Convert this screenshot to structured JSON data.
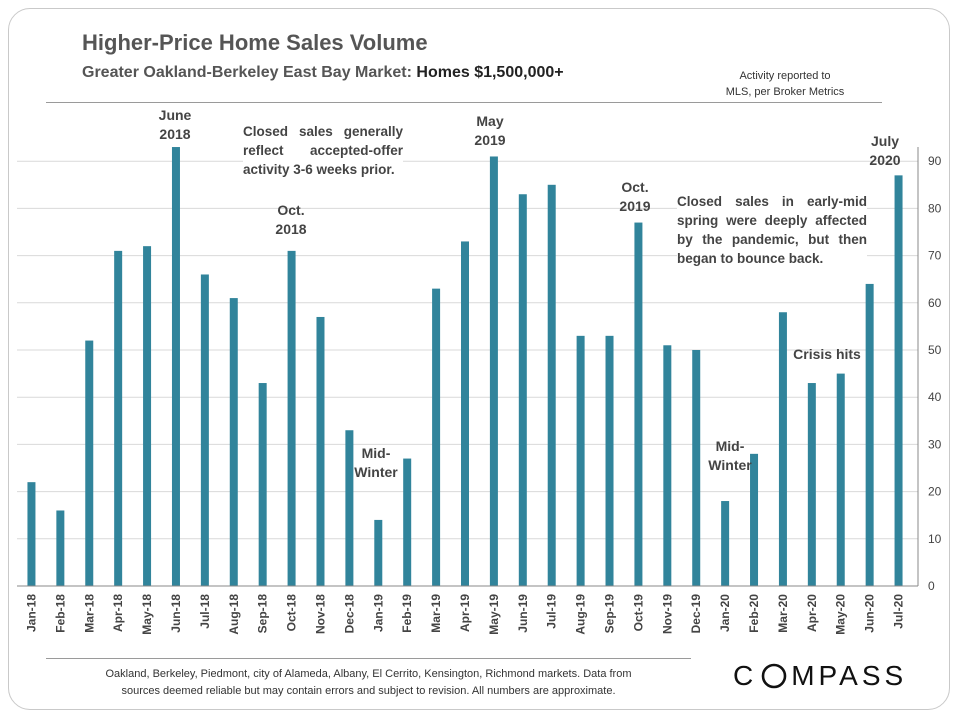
{
  "header": {
    "title": "Higher-Price Home Sales Volume",
    "subtitle_main": "Greater Oakland-Berkeley  East Bay Market: ",
    "subtitle_strong": "Homes $1,500,000+",
    "source_line1": "Activity reported to",
    "source_line2": "MLS, per Broker Metrics"
  },
  "annotations": {
    "june2018_l1": "June",
    "june2018_l2": "2018",
    "oct2018_l1": "Oct.",
    "oct2018_l2": "2018",
    "midwinter1_l1": "Mid-",
    "midwinter1_l2": "Winter",
    "may2019_l1": "May",
    "may2019_l2": "2019",
    "oct2019_l1": "Oct.",
    "oct2019_l2": "2019",
    "midwinter2_l1": "Mid-",
    "midwinter2_l2": "Winter",
    "crisis": "Crisis hits",
    "july2020_l1": "July",
    "july2020_l2": "2020",
    "callout_closed": "Closed sales generally reflect accepted-offer activity 3-6 weeks prior.",
    "callout_pandemic": "Closed sales in early-mid spring were deeply affected by the pandemic, but then began to bounce back."
  },
  "footer": {
    "note_line1": "Oakland, Berkeley, Piedmont, city of Alameda, Albany, El Cerrito, Kensington, Richmond markets. Data from",
    "note_line2": "sources deemed reliable but may contain errors and subject to revision. All numbers are approximate.",
    "logo_pre": "C",
    "logo_post": "MPASS"
  },
  "colors": {
    "bar": "#31849b",
    "grid": "#d9d9d9",
    "axis": "#888888"
  },
  "chart_data": {
    "type": "bar",
    "categories": [
      "Jan-18",
      "Feb-18",
      "Mar-18",
      "Apr-18",
      "May-18",
      "Jun-18",
      "Jul-18",
      "Aug-18",
      "Sep-18",
      "Oct-18",
      "Nov-18",
      "Dec-18",
      "Jan-19",
      "Feb-19",
      "Mar-19",
      "Apr-19",
      "May-19",
      "Jun-19",
      "Jul-19",
      "Aug-19",
      "Sep-19",
      "Oct-19",
      "Nov-19",
      "Dec-19",
      "Jan-20",
      "Feb-20",
      "Mar-20",
      "Apr-20",
      "May-20",
      "Jun-20",
      "Jul-20"
    ],
    "values": [
      22,
      16,
      52,
      71,
      72,
      93,
      66,
      61,
      43,
      71,
      57,
      33,
      14,
      27,
      63,
      73,
      91,
      83,
      85,
      53,
      53,
      77,
      51,
      50,
      18,
      28,
      58,
      43,
      45,
      64,
      87
    ],
    "yticks": [
      0,
      10,
      20,
      30,
      40,
      50,
      60,
      70,
      80,
      90
    ],
    "ylim": [
      0,
      95
    ],
    "y_axis_side": "right",
    "grid": true,
    "title": "Higher-Price Home Sales Volume",
    "xlabel": "",
    "ylabel": ""
  }
}
